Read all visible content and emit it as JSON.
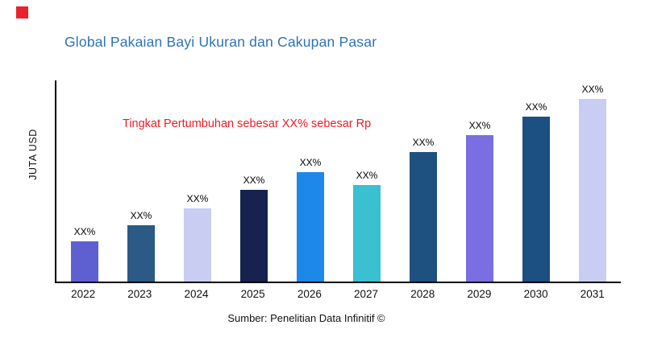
{
  "brand": {
    "logo_color": "#e8232a"
  },
  "header": {
    "title": "Global Pakaian Bayi Ukuran dan Cakupan Pasar",
    "title_color": "#2e74b5"
  },
  "chart": {
    "y_axis_label": "JUTA USD",
    "annotation": {
      "text": "Tingkat Pertumbuhan sebesar XX% sebesar Rp",
      "color": "#ee1c25"
    }
  },
  "chart_data": {
    "type": "bar",
    "title": "Global Pakaian Bayi Ukuran dan Cakupan Pasar",
    "categories": [
      "2022",
      "2023",
      "2024",
      "2025",
      "2026",
      "2027",
      "2028",
      "2029",
      "2030",
      "2031"
    ],
    "values": [
      22,
      31,
      40,
      50,
      60,
      53,
      71,
      80,
      90,
      100
    ],
    "bar_labels": [
      "XX%",
      "XX%",
      "XX%",
      "XX%",
      "XX%",
      "XX%",
      "XX%",
      "XX%",
      "XX%",
      "XX%"
    ],
    "bar_colors": [
      "#5e60d2",
      "#2a5a85",
      "#c8cdf1",
      "#18224e",
      "#1e88e8",
      "#3ac0d0",
      "#1f5180",
      "#7a6ee2",
      "#1c4f82",
      "#c8cdf1"
    ],
    "xlabel": "",
    "ylabel": "JUTA USD",
    "ylim": [
      0,
      110
    ],
    "grid": false,
    "legend": false,
    "annotation": "Tingkat Pertumbuhan sebesar XX% sebesar Rp"
  },
  "footer": {
    "source": "Sumber: Penelitian Data Infinitif ©"
  }
}
